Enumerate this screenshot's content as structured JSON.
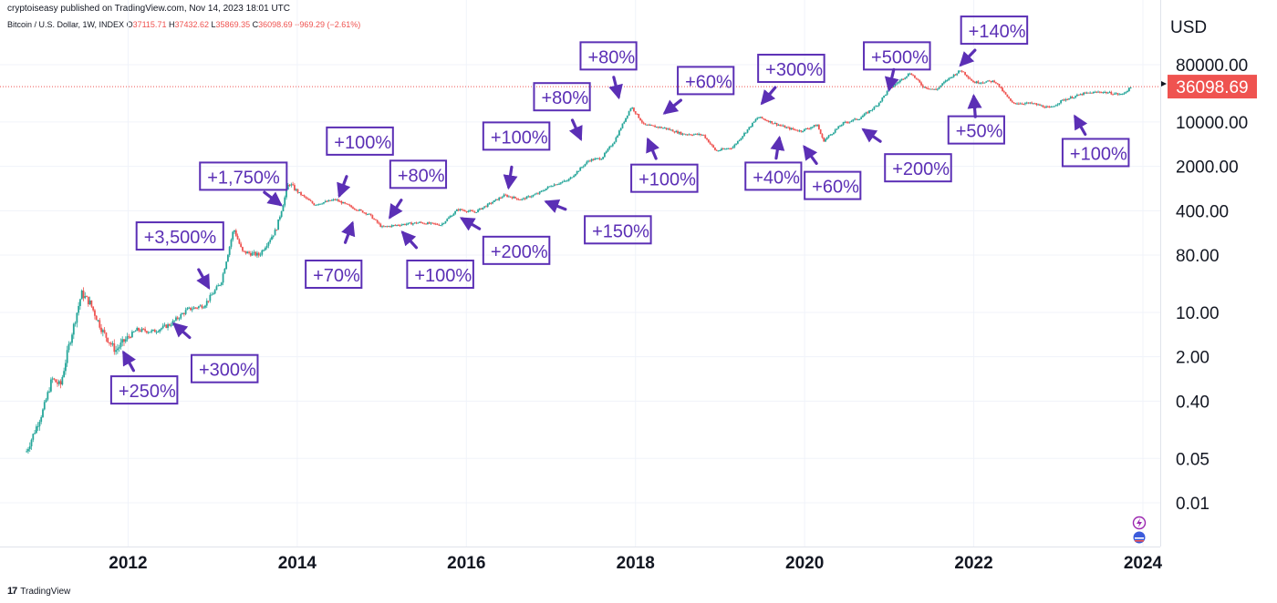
{
  "header": {
    "published": "cryptoiseasy published on TradingView.com, Nov 14, 2023 18:01 UTC",
    "symbol": "Bitcoin / U.S. Dollar, 1W, INDEX",
    "open_label": "O",
    "open": "37115.71",
    "high_label": "H",
    "high": "37432.62",
    "low_label": "L",
    "low": "35869.35",
    "close_label": "C",
    "close": "36098.69",
    "change": "−969.29 (−2.61%)"
  },
  "footer": {
    "brand_mark": "17",
    "brand": "TradingView"
  },
  "colors": {
    "up": "#26a69a",
    "down": "#ef5350",
    "annotation": "#5b2fb5",
    "price_tag": "#ef5350",
    "grid": "#f0f3fa"
  },
  "chart_data": {
    "type": "candlestick",
    "y_scale": "log",
    "currency": "USD",
    "x_tick_labels": [
      "2012",
      "2014",
      "2016",
      "2018",
      "2020",
      "2022",
      "2024"
    ],
    "y_tick_labels": [
      "80000.00",
      "10000.00",
      "2000.00",
      "400.00",
      "80.00",
      "10.00",
      "2.00",
      "0.40",
      "0.05",
      "0.01"
    ],
    "last_price": "36098.69",
    "grid": "on",
    "series": [
      [
        2010.8,
        0.065
      ],
      [
        2011.0,
        0.3
      ],
      [
        2011.1,
        0.9
      ],
      [
        2011.2,
        0.7
      ],
      [
        2011.3,
        3.0
      ],
      [
        2011.45,
        20.0
      ],
      [
        2011.55,
        14.0
      ],
      [
        2011.7,
        5.0
      ],
      [
        2011.85,
        2.5
      ],
      [
        2011.95,
        3.5
      ],
      [
        2012.1,
        5.3
      ],
      [
        2012.3,
        5.0
      ],
      [
        2012.5,
        6.5
      ],
      [
        2012.7,
        11.0
      ],
      [
        2012.9,
        13.0
      ],
      [
        2013.1,
        30.0
      ],
      [
        2013.25,
        210.0
      ],
      [
        2013.35,
        90.0
      ],
      [
        2013.55,
        80.0
      ],
      [
        2013.75,
        200.0
      ],
      [
        2013.9,
        1100.0
      ],
      [
        2014.0,
        800.0
      ],
      [
        2014.2,
        500.0
      ],
      [
        2014.45,
        600.0
      ],
      [
        2014.65,
        450.0
      ],
      [
        2014.85,
        350.0
      ],
      [
        2015.0,
        220.0
      ],
      [
        2015.2,
        240.0
      ],
      [
        2015.45,
        260.0
      ],
      [
        2015.7,
        240.0
      ],
      [
        2015.9,
        420.0
      ],
      [
        2016.1,
        380.0
      ],
      [
        2016.45,
        700.0
      ],
      [
        2016.65,
        600.0
      ],
      [
        2016.85,
        750.0
      ],
      [
        2017.0,
        1000.0
      ],
      [
        2017.2,
        1200.0
      ],
      [
        2017.45,
        2500.0
      ],
      [
        2017.6,
        2700.0
      ],
      [
        2017.75,
        5000.0
      ],
      [
        2017.95,
        17500.0
      ],
      [
        2018.1,
        9000.0
      ],
      [
        2018.35,
        8000.0
      ],
      [
        2018.55,
        6500.0
      ],
      [
        2018.8,
        6300.0
      ],
      [
        2018.95,
        3500.0
      ],
      [
        2019.15,
        4000.0
      ],
      [
        2019.45,
        12000.0
      ],
      [
        2019.6,
        10000.0
      ],
      [
        2019.8,
        8000.0
      ],
      [
        2019.95,
        7200.0
      ],
      [
        2020.15,
        9000.0
      ],
      [
        2020.22,
        5000.0
      ],
      [
        2020.45,
        9500.0
      ],
      [
        2020.65,
        11500.0
      ],
      [
        2020.85,
        18000.0
      ],
      [
        2021.0,
        33000.0
      ],
      [
        2021.25,
        60000.0
      ],
      [
        2021.4,
        36000.0
      ],
      [
        2021.55,
        32000.0
      ],
      [
        2021.7,
        48000.0
      ],
      [
        2021.85,
        66000.0
      ],
      [
        2022.0,
        42000.0
      ],
      [
        2022.25,
        44000.0
      ],
      [
        2022.45,
        20000.0
      ],
      [
        2022.7,
        19500.0
      ],
      [
        2022.9,
        16500.0
      ],
      [
        2023.05,
        22000.0
      ],
      [
        2023.3,
        28000.0
      ],
      [
        2023.5,
        30000.0
      ],
      [
        2023.75,
        27000.0
      ],
      [
        2023.87,
        36098.69
      ]
    ],
    "annotations": [
      {
        "text": "+250%",
        "x": 2011.8,
        "y": 0.6,
        "arrow_to": [
          2011.95,
          2.3
        ]
      },
      {
        "text": "+300%",
        "x": 2012.75,
        "y": 1.3,
        "arrow_to": [
          2012.55,
          6.5
        ]
      },
      {
        "text": "+3,500%",
        "x": 2012.1,
        "y": 160,
        "arrow_to": [
          2012.95,
          25
        ]
      },
      {
        "text": "+1,750%",
        "x": 2012.85,
        "y": 1400,
        "arrow_to": [
          2013.8,
          500
        ]
      },
      {
        "text": "+70%",
        "x": 2014.1,
        "y": 40,
        "arrow_to": [
          2014.65,
          250
        ]
      },
      {
        "text": "+100%",
        "x": 2014.35,
        "y": 5000,
        "arrow_to": [
          2014.5,
          700
        ]
      },
      {
        "text": "+80%",
        "x": 2015.1,
        "y": 1500,
        "arrow_to": [
          2015.1,
          320
        ]
      },
      {
        "text": "+100%",
        "x": 2015.3,
        "y": 40,
        "arrow_to": [
          2015.25,
          180
        ]
      },
      {
        "text": "+100%",
        "x": 2016.2,
        "y": 6000,
        "arrow_to": [
          2016.5,
          950
        ]
      },
      {
        "text": "+200%",
        "x": 2016.2,
        "y": 95,
        "arrow_to": [
          2015.95,
          300
        ]
      },
      {
        "text": "+80%",
        "x": 2016.8,
        "y": 25000,
        "arrow_to": [
          2017.35,
          5500
        ]
      },
      {
        "text": "+150%",
        "x": 2017.4,
        "y": 200,
        "arrow_to": [
          2016.95,
          550
        ]
      },
      {
        "text": "+80%",
        "x": 2017.35,
        "y": 110000,
        "arrow_to": [
          2017.8,
          25000
        ]
      },
      {
        "text": "+100%",
        "x": 2017.95,
        "y": 1300,
        "arrow_to": [
          2018.15,
          5200
        ]
      },
      {
        "text": "+60%",
        "x": 2018.5,
        "y": 45000,
        "arrow_to": [
          2018.35,
          14000
        ]
      },
      {
        "text": "+300%",
        "x": 2019.45,
        "y": 70000,
        "arrow_to": [
          2019.5,
          20000
        ]
      },
      {
        "text": "+40%",
        "x": 2019.3,
        "y": 1400,
        "arrow_to": [
          2019.7,
          5500
        ]
      },
      {
        "text": "+60%",
        "x": 2020.0,
        "y": 1000,
        "arrow_to": [
          2020.0,
          4000
        ]
      },
      {
        "text": "+500%",
        "x": 2020.7,
        "y": 110000,
        "arrow_to": [
          2021.0,
          33000
        ]
      },
      {
        "text": "+200%",
        "x": 2020.95,
        "y": 1900,
        "arrow_to": [
          2020.7,
          7500
        ]
      },
      {
        "text": "+140%",
        "x": 2021.85,
        "y": 280000,
        "arrow_to": [
          2021.85,
          80000
        ]
      },
      {
        "text": "+50%",
        "x": 2021.7,
        "y": 7500,
        "arrow_to": [
          2022.0,
          25000
        ]
      },
      {
        "text": "+100%",
        "x": 2023.05,
        "y": 3300,
        "arrow_to": [
          2023.2,
          12000
        ]
      }
    ]
  }
}
